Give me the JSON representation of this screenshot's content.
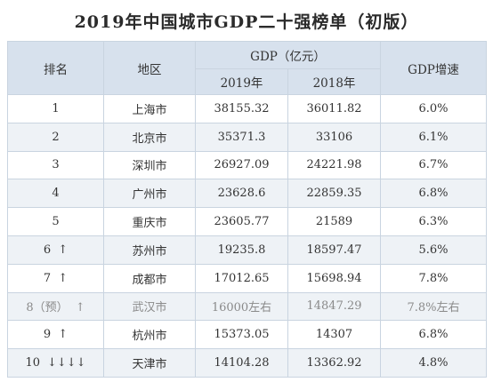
{
  "title": "2019年中国城市GDP二十强榜单（初版）",
  "headers": {
    "rank": "排名",
    "region": "地区",
    "gdp_group": "GDP（亿元）",
    "year_2019": "2019年",
    "year_2018": "2018年",
    "growth": "GDP增速"
  },
  "rows": [
    {
      "rank": "1",
      "arrow": "",
      "city": "上海市",
      "gdp2019": "38155.32",
      "gdp2018": "36011.82",
      "growth": "6.0%"
    },
    {
      "rank": "2",
      "arrow": "",
      "city": "北京市",
      "gdp2019": "35371.3",
      "gdp2018": "33106",
      "growth": "6.1%"
    },
    {
      "rank": "3",
      "arrow": "",
      "city": "深圳市",
      "gdp2019": "26927.09",
      "gdp2018": "24221.98",
      "growth": "6.7%"
    },
    {
      "rank": "4",
      "arrow": "",
      "city": "广州市",
      "gdp2019": "23628.6",
      "gdp2018": "22859.35",
      "growth": "6.8%"
    },
    {
      "rank": "5",
      "arrow": "",
      "city": "重庆市",
      "gdp2019": "23605.77",
      "gdp2018": "21589",
      "growth": "6.3%"
    },
    {
      "rank": "6",
      "arrow": "↑",
      "city": "苏州市",
      "gdp2019": "19235.8",
      "gdp2018": "18597.47",
      "growth": "5.6%"
    },
    {
      "rank": "7",
      "arrow": "↑",
      "city": "成都市",
      "gdp2019": "17012.65",
      "gdp2018": "15698.94",
      "growth": "7.8%"
    },
    {
      "rank": "8（预）",
      "arrow": "↑",
      "city": "武汉市",
      "gdp2019": "16000左右",
      "gdp2018": "14847.29",
      "growth": "7.8%左右",
      "muted": true
    },
    {
      "rank": "9",
      "arrow": "↑",
      "city": "杭州市",
      "gdp2019": "15373.05",
      "gdp2018": "14307",
      "growth": "6.8%"
    },
    {
      "rank": "10",
      "arrow": "↓↓↓↓",
      "city": "天津市",
      "gdp2019": "14104.28",
      "gdp2018": "13362.92",
      "growth": "4.8%"
    }
  ]
}
